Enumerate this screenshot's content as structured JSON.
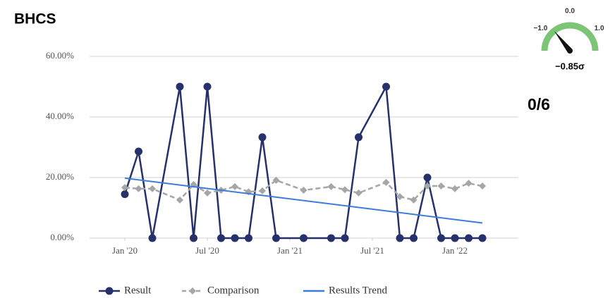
{
  "title": "BHCS",
  "score": "0/6",
  "gauge": {
    "ticks": [
      {
        "value": -1,
        "label": "−1.0"
      },
      {
        "value": 0,
        "label": "0.0"
      },
      {
        "value": 1,
        "label": "1.0"
      }
    ],
    "value": -0.85,
    "value_label": "−0.85σ",
    "color": "#7cc576"
  },
  "chart_data": {
    "type": "line",
    "x": [
      "2020-01",
      "2020-02",
      "2020-03",
      "2020-05",
      "2020-06",
      "2020-07",
      "2020-08",
      "2020-09",
      "2020-10",
      "2020-11",
      "2020-12",
      "2021-02",
      "2021-04",
      "2021-05",
      "2021-06",
      "2021-08",
      "2021-09",
      "2021-10",
      "2021-11",
      "2021-12",
      "2022-01",
      "2022-02",
      "2022-03"
    ],
    "series": [
      {
        "name": "Result",
        "color": "#26316b",
        "marker": "circle",
        "dash": false,
        "values": [
          14.5,
          28.6,
          0,
          50,
          0,
          50,
          0,
          0,
          0,
          33.3,
          0,
          0,
          0,
          0,
          33.3,
          50,
          0,
          0,
          20,
          0,
          0,
          0,
          0
        ]
      },
      {
        "name": "Comparison",
        "color": "#a6a6a6",
        "marker": "diamond",
        "dash": true,
        "values": [
          16.7,
          16.3,
          16.3,
          12.6,
          17.7,
          14.9,
          15.8,
          17.0,
          15.3,
          15.6,
          19.1,
          15.8,
          17.0,
          16.0,
          14.9,
          18.4,
          13.7,
          12.6,
          17.2,
          17.2,
          16.3,
          18.1,
          17.2
        ]
      },
      {
        "name": "Results Trend",
        "color": "#3b7dd8",
        "marker": "none",
        "dash": false,
        "x": [
          "2020-01",
          "2022-03"
        ],
        "values": [
          19.8,
          5.0
        ]
      }
    ],
    "ylim": [
      0,
      60
    ],
    "yticks": [
      {
        "value": 0,
        "label": "0.00%"
      },
      {
        "value": 20,
        "label": "20.00%"
      },
      {
        "value": 40,
        "label": "40.00%"
      },
      {
        "value": 60,
        "label": "60.00%"
      }
    ],
    "xticks": [
      {
        "value": "2020-01",
        "label": "Jan '20"
      },
      {
        "value": "2020-07",
        "label": "Jul '20"
      },
      {
        "value": "2021-01",
        "label": "Jan '21"
      },
      {
        "value": "2021-07",
        "label": "Jul '21"
      },
      {
        "value": "2022-01",
        "label": "Jan '22"
      }
    ],
    "grid": true,
    "legend": "bottom"
  }
}
